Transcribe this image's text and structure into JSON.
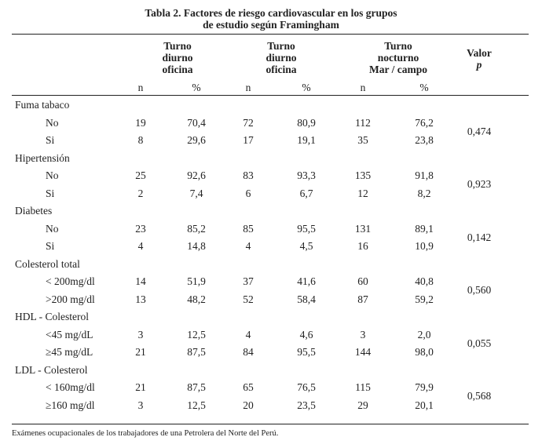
{
  "title_line1": "Tabla 2. Factores de riesgo cardiovascular en los grupos",
  "title_line2": "de estudio según Framingham",
  "headers": {
    "g1": [
      "Turno",
      "diurno",
      "oficina"
    ],
    "g2": [
      "Turno",
      "diurno",
      "oficina"
    ],
    "g3": [
      "Turno",
      "nocturno",
      "Mar / campo"
    ],
    "valor": "Valor",
    "p": "p",
    "n": "n",
    "pct": "%"
  },
  "groups": [
    {
      "factor": "Fuma tabaco",
      "p": "0,474",
      "rows": [
        {
          "label": "No",
          "v": [
            "19",
            "70,4",
            "72",
            "80,9",
            "112",
            "76,2"
          ]
        },
        {
          "label": "Si",
          "v": [
            "8",
            "29,6",
            "17",
            "19,1",
            "35",
            "23,8"
          ]
        }
      ]
    },
    {
      "factor": "Hipertensión",
      "p": "0,923",
      "rows": [
        {
          "label": "No",
          "v": [
            "25",
            "92,6",
            "83",
            "93,3",
            "135",
            "91,8"
          ]
        },
        {
          "label": "Si",
          "v": [
            "2",
            "7,4",
            "6",
            "6,7",
            "12",
            "8,2"
          ]
        }
      ]
    },
    {
      "factor": "Diabetes",
      "p": "0,142",
      "rows": [
        {
          "label": "No",
          "v": [
            "23",
            "85,2",
            "85",
            "95,5",
            "131",
            "89,1"
          ]
        },
        {
          "label": "Si",
          "v": [
            "4",
            "14,8",
            "4",
            "4,5",
            "16",
            "10,9"
          ]
        }
      ]
    },
    {
      "factor": "Colesterol total",
      "p": "0,560",
      "rows": [
        {
          "label": "< 200mg/dl",
          "v": [
            "14",
            "51,9",
            "37",
            "41,6",
            "60",
            "40,8"
          ]
        },
        {
          "label": ">200 mg/dl",
          "v": [
            "13",
            "48,2",
            "52",
            "58,4",
            "87",
            "59,2"
          ]
        }
      ]
    },
    {
      "factor": "HDL - Colesterol",
      "p": "0,055",
      "rows": [
        {
          "label": "<45 mg/dL",
          "v": [
            "3",
            "12,5",
            "4",
            "4,6",
            "3",
            "2,0"
          ]
        },
        {
          "label": "≥45 mg/dL",
          "v": [
            "21",
            "87,5",
            "84",
            "95,5",
            "144",
            "98,0"
          ]
        }
      ]
    },
    {
      "factor": "LDL - Colesterol",
      "p": "0,568",
      "rows": [
        {
          "label": "< 160mg/dl",
          "v": [
            "21",
            "87,5",
            "65",
            "76,5",
            "115",
            "79,9"
          ]
        },
        {
          "label": "≥160 mg/dl",
          "v": [
            "3",
            "12,5",
            "20",
            "23,5",
            "29",
            "20,1"
          ]
        }
      ]
    }
  ],
  "footnote": "Exámenes ocupacionales de los trabajadores de una Petrolera del Norte del Perú."
}
